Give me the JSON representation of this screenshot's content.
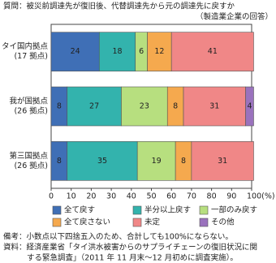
{
  "chart_data": {
    "type": "stacked-bar-horizontal",
    "title": "質問：被災前調達先が復旧後、代替調達先から元の調達先に戻すか",
    "subtitle": "（製造業企業の回答）",
    "categories": [
      [
        "タイ国内拠点",
        "(17 拠点)"
      ],
      [
        "我が国拠点",
        "(26 拠点)"
      ],
      [
        "第三国拠点",
        "(26 拠点)"
      ]
    ],
    "series": [
      {
        "name": "全て戻す",
        "color": "#3f6fb6",
        "values": [
          24,
          8,
          8
        ]
      },
      {
        "name": "半分以上戻す",
        "color": "#33b3ad",
        "values": [
          18,
          27,
          35
        ]
      },
      {
        "name": "一部のみ戻す",
        "color": "#b7df7f",
        "values": [
          6,
          23,
          19
        ]
      },
      {
        "name": "全て戻さない",
        "color": "#f5a94e",
        "values": [
          12,
          8,
          8
        ]
      },
      {
        "name": "未定",
        "color": "#f08787",
        "values": [
          41,
          31,
          31
        ]
      },
      {
        "name": "その他",
        "color": "#9a72bd",
        "values": [
          0,
          4,
          0
        ]
      }
    ],
    "xlim": [
      0,
      100
    ],
    "xticks": [
      0,
      10,
      20,
      30,
      40,
      50,
      60,
      70,
      80,
      90,
      {
        "value": 100,
        "label": "100(%)"
      }
    ],
    "notes": [
      "備考：小数点以下四捨五入のため、合計しても100%にならない。",
      "資料：経済産業省「タイ洪水被害からのサプライチェーンの復旧状況に関",
      "する緊急調査」（2011 年 11 月末〜12 月初めに調査実施）。"
    ]
  }
}
